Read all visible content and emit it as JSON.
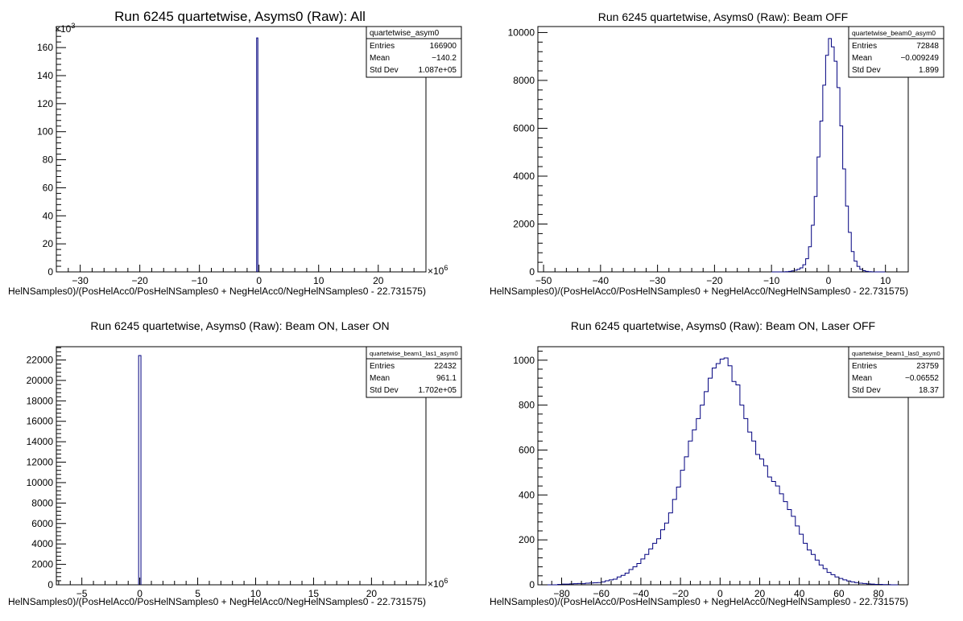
{
  "chart_data": [
    {
      "type": "histogram",
      "title": "Run 6245 quartetwise, Asyms0 (Raw): All",
      "xlabel": "HelNSamples0)/(PosHelAcc0/PosHelNSamples0 + NegHelAcc0/NegHelNSamples0 - 22.731575)",
      "ylabel": "",
      "x_exponent": "10",
      "x_exponent_power": "6",
      "y_exponent": "10",
      "y_exponent_power": "3",
      "xlim": [
        -34,
        28
      ],
      "ylim": [
        0,
        175
      ],
      "x_ticks": [
        -30,
        -20,
        -10,
        0,
        10,
        20
      ],
      "x_minor_step": 2,
      "y_ticks": [
        0,
        20,
        40,
        60,
        80,
        100,
        120,
        140,
        160
      ],
      "y_minor_step": 4,
      "bins": [
        [
          -0.4,
          0.2,
          166.9
        ]
      ],
      "line_color": "#00007f",
      "stats": {
        "name": "quartetwise_asym0",
        "rows": [
          {
            "label": "Entries",
            "value": "166900"
          },
          {
            "label": "Mean",
            "value": "−140.2"
          },
          {
            "label": "Std Dev",
            "value": "1.087e+05"
          }
        ]
      }
    },
    {
      "type": "histogram",
      "title": "Run 6245 quartetwise, Asyms0 (Raw): Beam OFF",
      "xlabel": "HelNSamples0)/(PosHelAcc0/PosHelNSamples0 + NegHelAcc0/NegHelNSamples0 - 22.731575)",
      "ylabel": "",
      "xlim": [
        -51,
        14
      ],
      "ylim": [
        0,
        10250
      ],
      "x_ticks": [
        -50,
        -40,
        -30,
        -20,
        -10,
        0,
        10
      ],
      "x_minor_step": 2,
      "y_ticks": [
        0,
        2000,
        4000,
        6000,
        8000,
        10000
      ],
      "y_minor_step": 400,
      "hist": {
        "edges": [
          -10,
          -9.5,
          -9,
          -8.5,
          -8,
          -7.5,
          -7,
          -6.5,
          -6,
          -5.5,
          -5,
          -4.5,
          -4,
          -3.5,
          -3,
          -2.5,
          -2,
          -1.5,
          -1,
          -0.5,
          0,
          0.5,
          1,
          1.5,
          2,
          2.5,
          3,
          3.5,
          4,
          4.5,
          5,
          5.5,
          6,
          6.5,
          7,
          7.5,
          8,
          8.5,
          9,
          9.5,
          10
        ],
        "values": [
          0,
          0,
          0,
          0,
          5,
          10,
          20,
          40,
          70,
          110,
          170,
          300,
          550,
          1050,
          1950,
          3150,
          4800,
          6300,
          7800,
          9050,
          9750,
          9400,
          8800,
          7700,
          6100,
          4300,
          2750,
          1650,
          850,
          450,
          230,
          110,
          50,
          20,
          10,
          5,
          0,
          0,
          0,
          0
        ]
      },
      "line_color": "#00007f",
      "stats": {
        "name": "quartetwise_beam0_asym0",
        "rows": [
          {
            "label": "Entries",
            "value": "72848"
          },
          {
            "label": "Mean",
            "value": "−0.009249"
          },
          {
            "label": "Std Dev",
            "value": "1.899"
          }
        ]
      }
    },
    {
      "type": "histogram",
      "title": "Run 6245 quartetwise, Asyms0 (Raw): Beam ON, Laser ON",
      "xlabel": "HelNSamples0)/(PosHelAcc0/PosHelNSamples0 + NegHelAcc0/NegHelNSamples0 - 22.731575)",
      "ylabel": "",
      "x_exponent": "10",
      "x_exponent_power": "6",
      "xlim": [
        -7.2,
        24.7
      ],
      "ylim": [
        0,
        23300
      ],
      "x_ticks": [
        -5,
        0,
        5,
        10,
        15,
        20
      ],
      "x_minor_step": 1,
      "y_ticks": [
        0,
        2000,
        4000,
        6000,
        8000,
        10000,
        12000,
        14000,
        16000,
        18000,
        20000,
        22000
      ],
      "y_minor_step": 400,
      "bins": [
        [
          -0.1,
          0.2,
          22432
        ]
      ],
      "line_color": "#00007f",
      "stats": {
        "name": "quartetwise_beam1_las1_asym0",
        "rows": [
          {
            "label": "Entries",
            "value": "22432"
          },
          {
            "label": "Mean",
            "value": "961.1"
          },
          {
            "label": "Std Dev",
            "value": "1.702e+05"
          }
        ]
      }
    },
    {
      "type": "histogram",
      "title": "Run 6245 quartetwise, Asyms0 (Raw): Beam ON, Laser OFF",
      "xlabel": "HelNSamples0)/(PosHelAcc0/PosHelNSamples0 + NegHelAcc0/NegHelNSamples0 - 22.731575)",
      "ylabel": "",
      "xlim": [
        -92,
        95
      ],
      "ylim": [
        0,
        1060
      ],
      "x_ticks": [
        -80,
        -60,
        -40,
        -20,
        0,
        20,
        40,
        60,
        80
      ],
      "x_minor_step": 5,
      "y_ticks": [
        0,
        200,
        400,
        600,
        800,
        1000
      ],
      "y_minor_step": 40,
      "hist": {
        "edges": [
          -90,
          -88,
          -86,
          -84,
          -82,
          -80,
          -78,
          -76,
          -74,
          -72,
          -70,
          -68,
          -66,
          -64,
          -62,
          -60,
          -58,
          -56,
          -54,
          -52,
          -50,
          -48,
          -46,
          -44,
          -42,
          -40,
          -38,
          -36,
          -34,
          -32,
          -30,
          -28,
          -26,
          -24,
          -22,
          -20,
          -18,
          -16,
          -14,
          -12,
          -10,
          -8,
          -6,
          -4,
          -2,
          0,
          2,
          4,
          6,
          8,
          10,
          12,
          14,
          16,
          18,
          20,
          22,
          24,
          26,
          28,
          30,
          32,
          34,
          36,
          38,
          40,
          42,
          44,
          46,
          48,
          50,
          52,
          54,
          56,
          58,
          60,
          62,
          64,
          66,
          68,
          70,
          72,
          74,
          76,
          78,
          80,
          82,
          84,
          86,
          88,
          90
        ],
        "values": [
          0,
          0,
          0,
          0,
          2,
          3,
          3,
          4,
          5,
          6,
          5,
          7,
          8,
          9,
          10,
          13,
          18,
          22,
          25,
          35,
          42,
          52,
          68,
          80,
          95,
          115,
          135,
          160,
          185,
          205,
          245,
          275,
          320,
          380,
          435,
          510,
          570,
          640,
          690,
          740,
          800,
          860,
          920,
          965,
          985,
          1005,
          1010,
          975,
          905,
          890,
          800,
          740,
          680,
          640,
          580,
          560,
          530,
          480,
          460,
          440,
          405,
          370,
          335,
          305,
          262,
          225,
          185,
          155,
          135,
          110,
          88,
          72,
          55,
          45,
          35,
          28,
          22,
          17,
          13,
          10,
          7,
          6,
          4,
          3,
          2,
          2,
          1,
          1,
          0,
          0
        ]
      },
      "line_color": "#00007f",
      "stats": {
        "name": "quartetwise_beam1_las0_asym0",
        "rows": [
          {
            "label": "Entries",
            "value": "23759"
          },
          {
            "label": "Mean",
            "value": "−0.06552"
          },
          {
            "label": "Std Dev",
            "value": "18.37"
          }
        ]
      }
    }
  ]
}
